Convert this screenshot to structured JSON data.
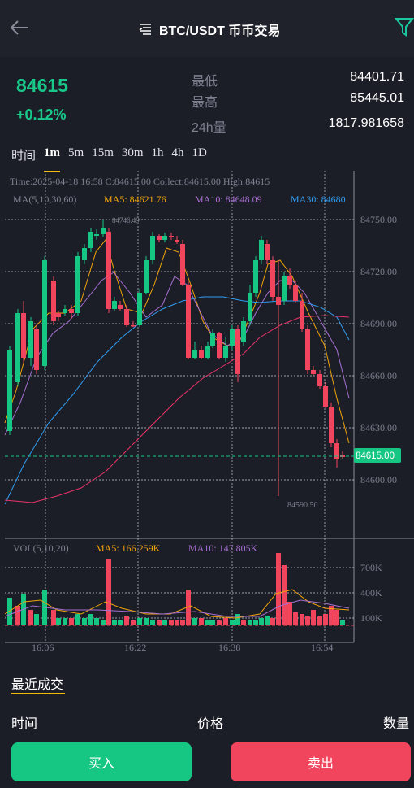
{
  "header": {
    "title": "BTC/USDT 币币交易"
  },
  "ticker": {
    "last_price": "84615",
    "change_pct": "+0.12%",
    "low_label": "最低",
    "low_value": "84401.71",
    "high_label": "最高",
    "high_value": "85445.01",
    "vol_label": "24h量",
    "vol_value": "1817.981658"
  },
  "timeframes": {
    "label": "时间",
    "options": [
      "1m",
      "5m",
      "15m",
      "30m",
      "1h",
      "4h",
      "1D"
    ],
    "active": "1m"
  },
  "chart_info": {
    "row1": "Time:2025-04-18 16:58   C:84615.00   Collect:84615.00   High:84615",
    "ma_label": "MA(5,10,30,60)",
    "ma5": "MA5: 84621.76",
    "ma10": "MA10: 84648.09",
    "ma30": "MA30: 84680",
    "vol_label": "VOL(5,10,20)",
    "vol_ma5": "MA5: 166.259K",
    "vol_ma10": "MA10: 147.805K",
    "max_marker": "84746.49",
    "min_marker": "84590.50",
    "current_tag": "84615.00"
  },
  "chart_data": {
    "type": "candlestick",
    "y_ticks": [
      "84750.00",
      "84720.00",
      "84690.00",
      "84660.00",
      "84630.00",
      "84600.00"
    ],
    "ylim": [
      84580,
      84760
    ],
    "vol_ticks": [
      "700K",
      "400K",
      "100K"
    ],
    "x_ticks": [
      "16:06",
      "16:22",
      "16:38",
      "16:54"
    ],
    "colors": {
      "up": "#16c784",
      "down": "#f0455c",
      "ma5": "#f0a30a",
      "ma10": "#a66fd2",
      "ma30": "#2f9cf0",
      "ma60": "#e8336a"
    }
  },
  "trades": {
    "title": "最近成交",
    "col_time": "时间",
    "col_price": "价格",
    "col_qty": "数量"
  },
  "actions": {
    "buy": "买入",
    "sell": "卖出"
  }
}
